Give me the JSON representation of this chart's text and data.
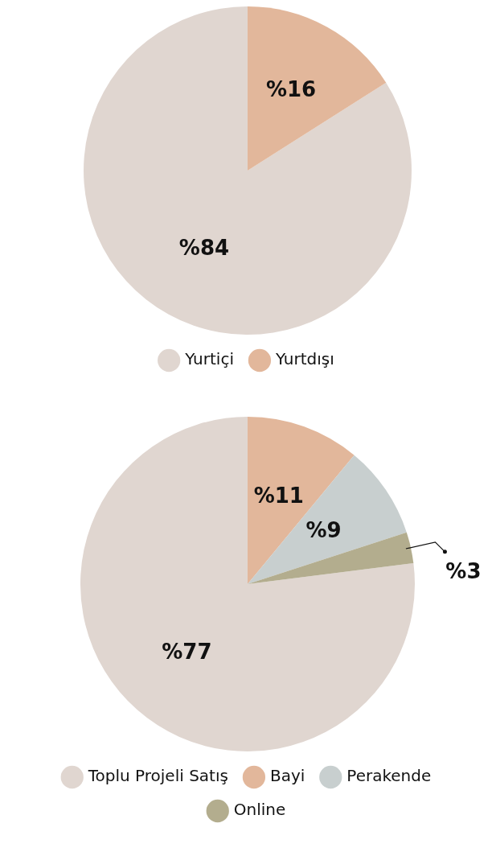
{
  "chart_data": [
    {
      "type": "pie",
      "categories": [
        "Yurtiçi",
        "Yurtdışı"
      ],
      "values": [
        84,
        16
      ],
      "colors": [
        "#e0d6d0",
        "#e2b79b"
      ],
      "value_labels": [
        "%84",
        "%16"
      ],
      "legend": "bottom"
    },
    {
      "type": "pie",
      "categories": [
        "Toplu Projeli Satış",
        "Bayi",
        "Perakende",
        "Online"
      ],
      "values": [
        77,
        11,
        9,
        3
      ],
      "colors": [
        "#e0d6d0",
        "#e2b79b",
        "#c8cfcf",
        "#b3ad8e"
      ],
      "value_labels": [
        "%77",
        "%11",
        "%9",
        "%3"
      ],
      "legend": "bottom"
    }
  ]
}
